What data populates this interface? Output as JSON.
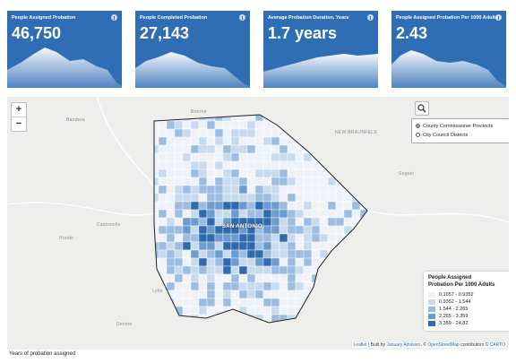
{
  "cards": [
    {
      "title": "People Assigned Probation",
      "value": "46,750"
    },
    {
      "title": "People Completed Probation",
      "value": "27,143"
    },
    {
      "title": "Average Probation Duration, Years",
      "value": "1.7 years"
    },
    {
      "title": "People Assigned Probation Per 1000 Adults",
      "value": "2.43"
    }
  ],
  "map": {
    "zoom_in": "+",
    "zoom_out": "−",
    "places": [
      "Bandera",
      "Boerne",
      "NEW BRAUNFELS",
      "Seguin",
      "Castroville",
      "Hondo",
      "Lytle",
      "Devine",
      "SAN ANTONIO"
    ],
    "layers": [
      "County Commissioner Precincts",
      "City Council Districts"
    ],
    "legend": {
      "title": [
        "People Assigned",
        "Probation Per 1000 Adults"
      ],
      "items": [
        "0.1057 - 0.9352",
        "0.9352 - 1.544",
        "1.544 - 2.265",
        "2.265 - 3.359",
        "3.359 - 24.82"
      ]
    },
    "attribution": {
      "leaflet": "Leaflet",
      "built": " | Built by ",
      "advisor": "January Advisors",
      "sep": ", © ",
      "osm": "OpenStreetMap",
      "contrib": " contributors © ",
      "carto": "CARTO"
    }
  },
  "footer": "Years of probation assigned"
}
